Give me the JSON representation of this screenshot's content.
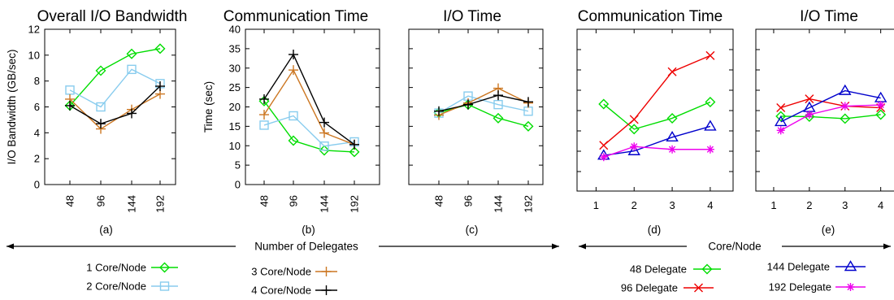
{
  "chart_data": [
    {
      "type": "line",
      "panel_label": "(a)",
      "title": "Overall I/O Bandwidth",
      "xlabel": "",
      "ylabel": "I/O Bandwidth (GB/sec)",
      "categories": [
        "48",
        "96",
        "144",
        "192"
      ],
      "ylim": [
        0,
        12
      ],
      "yticks": [
        "0",
        "2",
        "4",
        "6",
        "8",
        "10",
        "12"
      ],
      "series": [
        {
          "name": "1 Core/Node",
          "color": "#00dd00",
          "marker": "diamond",
          "values": [
            6.1,
            8.8,
            10.1,
            10.5
          ]
        },
        {
          "name": "2 Core/Node",
          "color": "#88ccee",
          "marker": "square",
          "values": [
            7.3,
            6.0,
            8.9,
            7.8
          ]
        },
        {
          "name": "3 Core/Node",
          "color": "#cc7722",
          "marker": "plus",
          "values": [
            6.6,
            4.3,
            5.8,
            7.0
          ]
        },
        {
          "name": "4 Core/Node",
          "color": "#000000",
          "marker": "plus",
          "values": [
            6.1,
            4.7,
            5.5,
            7.6
          ]
        }
      ]
    },
    {
      "type": "line",
      "panel_label": "(b)",
      "title": "Communication Time",
      "xlabel": "",
      "ylabel": "Time (sec)",
      "categories": [
        "48",
        "96",
        "144",
        "192"
      ],
      "ylim": [
        0,
        40
      ],
      "yticks": [
        "0",
        "5",
        "10",
        "15",
        "20",
        "25",
        "30",
        "35",
        "40"
      ],
      "series": [
        {
          "name": "1 Core/Node",
          "color": "#00dd00",
          "marker": "diamond",
          "values": [
            21.5,
            11.3,
            8.8,
            8.4
          ]
        },
        {
          "name": "2 Core/Node",
          "color": "#88ccee",
          "marker": "square",
          "values": [
            15.3,
            17.7,
            9.9,
            11.0
          ]
        },
        {
          "name": "3 Core/Node",
          "color": "#cc7722",
          "marker": "plus",
          "values": [
            18.0,
            29.5,
            13.3,
            10.3
          ]
        },
        {
          "name": "4 Core/Node",
          "color": "#000000",
          "marker": "plus",
          "values": [
            22.0,
            33.5,
            16.0,
            10.3
          ]
        }
      ]
    },
    {
      "type": "line",
      "panel_label": "(c)",
      "title": "I/O Time",
      "xlabel": "",
      "ylabel": "",
      "categories": [
        "48",
        "96",
        "144",
        "192"
      ],
      "ylim": [
        0,
        40
      ],
      "series": [
        {
          "name": "1 Core/Node",
          "color": "#00dd00",
          "marker": "diamond",
          "values": [
            18.5,
            20.6,
            17.1,
            15.0
          ]
        },
        {
          "name": "2 Core/Node",
          "color": "#88ccee",
          "marker": "square",
          "values": [
            18.4,
            22.8,
            20.6,
            18.9
          ]
        },
        {
          "name": "3 Core/Node",
          "color": "#cc7722",
          "marker": "plus",
          "values": [
            17.9,
            21.0,
            24.8,
            21.0
          ]
        },
        {
          "name": "4 Core/Node",
          "color": "#000000",
          "marker": "plus",
          "values": [
            18.9,
            20.6,
            23.0,
            21.3
          ]
        }
      ]
    },
    {
      "type": "line",
      "panel_label": "(d)",
      "title": "Communication Time",
      "xlabel": "",
      "ylabel": "",
      "categories": [
        "1",
        "2",
        "3",
        "4"
      ],
      "ylim": [
        0,
        40
      ],
      "series": [
        {
          "name": "48 Delegate",
          "color": "#00dd00",
          "marker": "diamond",
          "x": [
            1.2,
            2,
            3,
            4
          ],
          "values": [
            21.5,
            15.3,
            18.0,
            22.0
          ]
        },
        {
          "name": "96 Delegate",
          "color": "#ee0000",
          "marker": "x",
          "x": [
            1.2,
            2,
            3,
            4
          ],
          "values": [
            11.3,
            17.7,
            29.5,
            33.5
          ]
        },
        {
          "name": "144 Delegate",
          "color": "#0000cc",
          "marker": "triangle",
          "x": [
            1.2,
            2,
            3,
            4
          ],
          "values": [
            8.8,
            9.9,
            13.3,
            16.0
          ]
        },
        {
          "name": "192 Delegate",
          "color": "#ee00ee",
          "marker": "asterisk",
          "x": [
            1.2,
            2,
            3,
            4
          ],
          "values": [
            8.4,
            11.0,
            10.3,
            10.3
          ]
        }
      ]
    },
    {
      "type": "line",
      "panel_label": "(e)",
      "title": "I/O Time",
      "xlabel": "",
      "ylabel": "",
      "categories": [
        "1",
        "2",
        "3",
        "4"
      ],
      "ylim": [
        0,
        40
      ],
      "series": [
        {
          "name": "48 Delegate",
          "color": "#00dd00",
          "marker": "diamond",
          "x": [
            1.2,
            2,
            3,
            4
          ],
          "values": [
            18.5,
            18.4,
            17.9,
            18.9
          ]
        },
        {
          "name": "96 Delegate",
          "color": "#ee0000",
          "marker": "x",
          "x": [
            1.2,
            2,
            3,
            4
          ],
          "values": [
            20.6,
            22.8,
            21.0,
            20.6
          ]
        },
        {
          "name": "144 Delegate",
          "color": "#0000cc",
          "marker": "triangle",
          "x": [
            1.2,
            2,
            3,
            4
          ],
          "values": [
            17.1,
            20.6,
            24.8,
            23.0
          ]
        },
        {
          "name": "192 Delegate",
          "color": "#ee00ee",
          "marker": "asterisk",
          "x": [
            1.2,
            2,
            3,
            4
          ],
          "values": [
            15.0,
            18.9,
            21.0,
            21.3
          ]
        }
      ]
    }
  ],
  "shared_labels": {
    "delegates_axis": "Number of Delegates",
    "cores_axis": "Core/Node"
  }
}
